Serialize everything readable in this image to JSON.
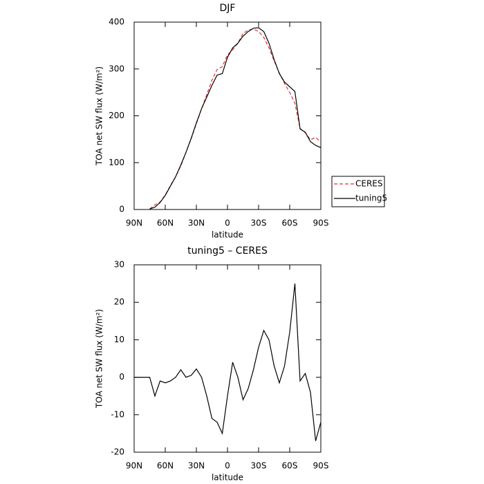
{
  "chart_data": [
    {
      "type": "line",
      "title": "DJF",
      "x_label": "latitude",
      "y_label": "TOA net SW flux (W/m²)",
      "x": [
        75,
        70,
        65,
        60,
        55,
        50,
        45,
        40,
        35,
        30,
        25,
        20,
        15,
        10,
        5,
        0,
        -5,
        -10,
        -15,
        -20,
        -25,
        -30,
        -35,
        -40,
        -45,
        -50,
        -55,
        -60,
        -65,
        -70,
        -75,
        -80,
        -85,
        -90
      ],
      "series": [
        {
          "name": "CERES",
          "color": "#e03030",
          "dash": true,
          "values": [
            1,
            10,
            16,
            31,
            51,
            70,
            93,
            122,
            151,
            183,
            215,
            245,
            276,
            299,
            305,
            330,
            341,
            355,
            376,
            383,
            385,
            380,
            367.5,
            345,
            317,
            291.5,
            269,
            250,
            227,
            173,
            164,
            149,
            154,
            144
          ]
        },
        {
          "name": "tuning5",
          "color": "#000000",
          "dash": false,
          "values": [
            1,
            5,
            15,
            30,
            50,
            70,
            95,
            122,
            152,
            185,
            215,
            240,
            265,
            287,
            290,
            325,
            345,
            355,
            370,
            380,
            387,
            388,
            380,
            355,
            320,
            290,
            272,
            262,
            252,
            172,
            165,
            145,
            137,
            132
          ]
        }
      ],
      "xlim": [
        90,
        -90
      ],
      "xticks": [
        {
          "value": 90,
          "label": "90N"
        },
        {
          "value": 60,
          "label": "60N"
        },
        {
          "value": 30,
          "label": "30N"
        },
        0,
        {
          "value": -30,
          "label": "30S"
        },
        {
          "value": -60,
          "label": "60S"
        },
        {
          "value": -90,
          "label": "90S"
        }
      ],
      "ylim": [
        0,
        400
      ],
      "yticks": [
        0,
        100,
        200,
        300,
        400
      ],
      "legend": "right"
    },
    {
      "type": "line",
      "title": "tuning5 – CERES",
      "x_label": "latitude",
      "y_label": "TOA net SW flux (W/m²)",
      "x": [
        90,
        85,
        80,
        75,
        70,
        65,
        60,
        55,
        50,
        45,
        40,
        35,
        30,
        25,
        20,
        15,
        10,
        5,
        0,
        -5,
        -10,
        -15,
        -20,
        -25,
        -30,
        -35,
        -40,
        -45,
        -50,
        -55,
        -60,
        -65,
        -70,
        -75,
        -80,
        -85,
        -90
      ],
      "series": [
        {
          "color": "#000000",
          "dash": false,
          "values": [
            0,
            0,
            0,
            0,
            -5,
            -1,
            -1.5,
            -1,
            0,
            2,
            0,
            0.5,
            2.2,
            0,
            -5,
            -11,
            -12,
            -15,
            -5,
            4,
            0,
            -6,
            -3,
            2,
            8,
            12.5,
            10,
            3,
            -1.5,
            3,
            12,
            25,
            -1,
            1,
            -4,
            -17,
            -12
          ]
        }
      ],
      "xlim": [
        90,
        -90
      ],
      "xticks": [
        {
          "value": 90,
          "label": "90N"
        },
        {
          "value": 60,
          "label": "60N"
        },
        {
          "value": 30,
          "label": "30N"
        },
        0,
        {
          "value": -30,
          "label": "30S"
        },
        {
          "value": -60,
          "label": "60S"
        },
        {
          "value": -90,
          "label": "90S"
        }
      ],
      "ylim": [
        -20,
        30
      ],
      "yticks": [
        -20,
        -10,
        0,
        10,
        20,
        30
      ]
    }
  ]
}
